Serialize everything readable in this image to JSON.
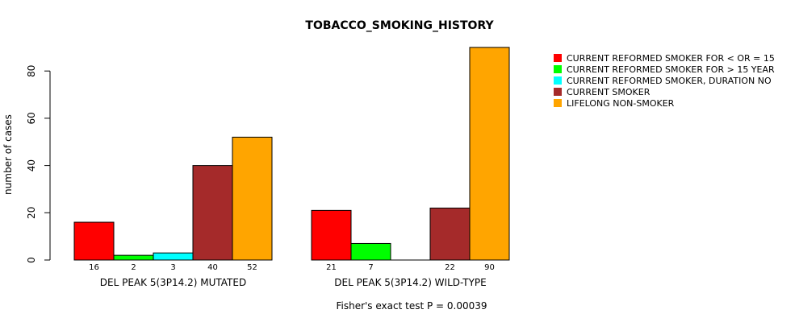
{
  "chart_data": {
    "type": "bar",
    "title": "TOBACCO_SMOKING_HISTORY",
    "ylabel": "number of cases",
    "xlabel": "",
    "ylim": [
      0,
      90
    ],
    "yticks": [
      0,
      20,
      40,
      60,
      80
    ],
    "groups": [
      {
        "label": "DEL PEAK  5(3P14.2) MUTATED",
        "values": [
          16,
          2,
          3,
          40,
          52
        ],
        "value_labels": [
          "16",
          "2",
          "3",
          "40",
          "52"
        ]
      },
      {
        "label": "DEL PEAK  5(3P14.2) WILD-TYPE",
        "values": [
          21,
          7,
          0,
          22,
          90
        ],
        "value_labels": [
          "21",
          "7",
          "",
          "22",
          "90"
        ]
      }
    ],
    "series": [
      {
        "name": "CURRENT REFORMED SMOKER FOR < OR = 15",
        "color": "#ff0000"
      },
      {
        "name": "CURRENT REFORMED SMOKER FOR > 15 YEAR",
        "color": "#00ff00"
      },
      {
        "name": "CURRENT REFORMED SMOKER, DURATION NO",
        "color": "#00ffff"
      },
      {
        "name": "CURRENT SMOKER",
        "color": "#a52a2a"
      },
      {
        "name": "LIFELONG NON-SMOKER",
        "color": "#ffa500"
      }
    ],
    "legend_position": "top-right",
    "footnote": "Fisher's exact test P = 0.00039"
  }
}
